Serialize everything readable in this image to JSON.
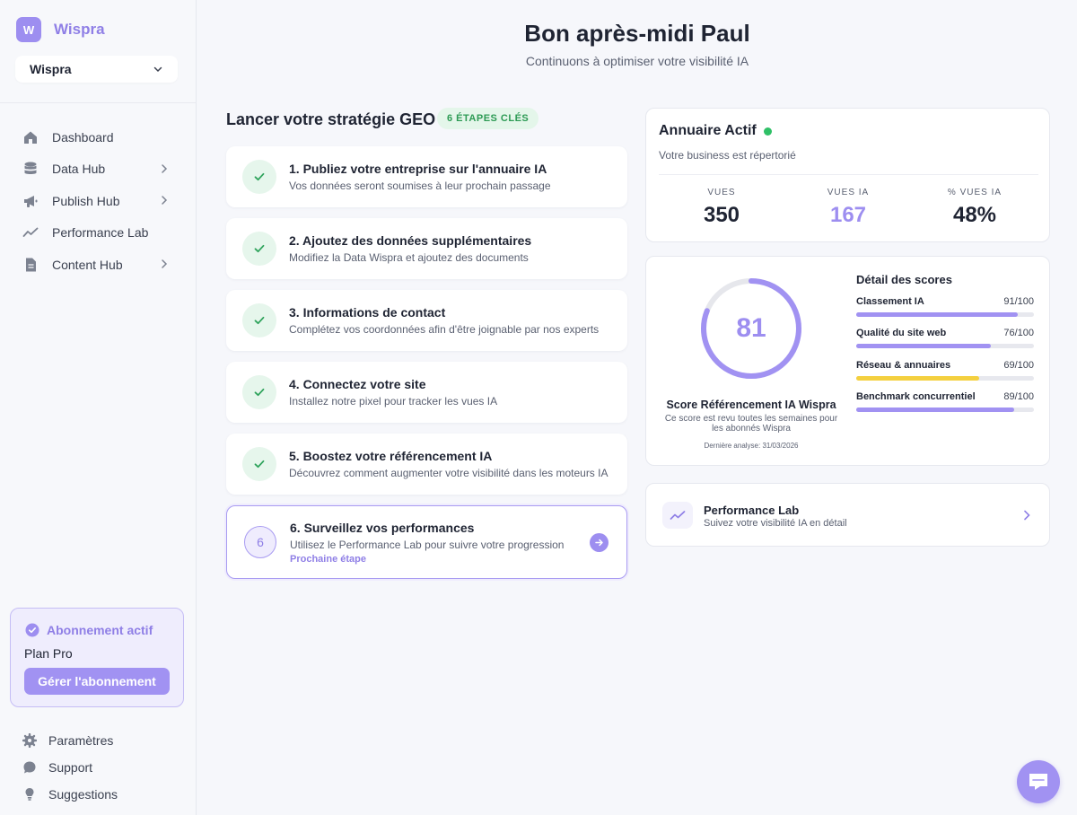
{
  "brand": {
    "logo_letter": "W",
    "name": "Wispra"
  },
  "workspace": {
    "name": "Wispra"
  },
  "sidebar": {
    "items": [
      {
        "label": "Dashboard",
        "icon": "home-icon",
        "has_submenu": false
      },
      {
        "label": "Data Hub",
        "icon": "database-icon",
        "has_submenu": true
      },
      {
        "label": "Publish Hub",
        "icon": "megaphone-icon",
        "has_submenu": true
      },
      {
        "label": "Performance Lab",
        "icon": "trend-icon",
        "has_submenu": false
      },
      {
        "label": "Content Hub",
        "icon": "document-icon",
        "has_submenu": true
      }
    ],
    "subscription": {
      "title": "Abonnement actif",
      "plan": "Plan Pro",
      "button": "Gérer l'abonnement"
    },
    "bottom_items": [
      {
        "label": "Paramètres",
        "icon": "gear-icon"
      },
      {
        "label": "Support",
        "icon": "chat-bubble-icon"
      },
      {
        "label": "Suggestions",
        "icon": "lightbulb-icon"
      }
    ]
  },
  "header": {
    "greeting": "Bon après-midi Paul",
    "subtitle": "Continuons à optimiser votre visibilité IA"
  },
  "strategy": {
    "title": "Lancer votre stratégie GEO",
    "badge": "6 ÉTAPES CLÉS",
    "steps": [
      {
        "title": "1. Publiez votre entreprise sur l'annuaire IA",
        "desc": "Vos données seront soumises à leur prochain passage",
        "done": true
      },
      {
        "title": "2. Ajoutez des données supplémentaires",
        "desc": "Modifiez la Data Wispra et ajoutez des documents",
        "done": true
      },
      {
        "title": "3. Informations de contact",
        "desc": "Complétez vos coordonnées afin d'être joignable par nos experts",
        "done": true
      },
      {
        "title": "4. Connectez votre site",
        "desc": "Installez notre pixel pour tracker les vues IA",
        "done": true
      },
      {
        "title": "5. Boostez votre référencement IA",
        "desc": "Découvrez comment augmenter votre visibilité dans les moteurs IA",
        "done": true
      }
    ],
    "active_step": {
      "number": "6",
      "title": "6. Surveillez vos performances",
      "desc": "Utilisez le Performance Lab pour suivre votre progression",
      "next_label": "Prochaine étape"
    }
  },
  "directory": {
    "title": "Annuaire Actif",
    "status_color": "#2fc067",
    "subtitle": "Votre business est répertorié",
    "stats": [
      {
        "label": "VUES",
        "value": "350"
      },
      {
        "label": "VUES IA",
        "value": "167"
      },
      {
        "label": "% VUES IA",
        "value": "48%"
      }
    ]
  },
  "score": {
    "value": 81,
    "max": 100,
    "title": "Score Référencement IA Wispra",
    "desc": "Ce score est revu toutes les semaines pour les abonnés Wispra",
    "date": "Dernière analyse: 31/03/2026",
    "details_title": "Détail des scores",
    "details": [
      {
        "name": "Classement IA",
        "score_text": "91/100",
        "value": 91,
        "color": "#a192f2"
      },
      {
        "name": "Qualité du site web",
        "score_text": "76/100",
        "value": 76,
        "color": "#a192f2"
      },
      {
        "name": "Réseau & annuaires",
        "score_text": "69/100",
        "value": 69,
        "color": "#f4d03f"
      },
      {
        "name": "Benchmark concurrentiel",
        "score_text": "89/100",
        "value": 89,
        "color": "#a192f2"
      }
    ]
  },
  "performance_link": {
    "title": "Performance Lab",
    "desc": "Suivez votre visibilité IA en détail"
  },
  "colors": {
    "accent": "#9d8ef0",
    "success": "#2fc067",
    "warning": "#f4d03f"
  }
}
